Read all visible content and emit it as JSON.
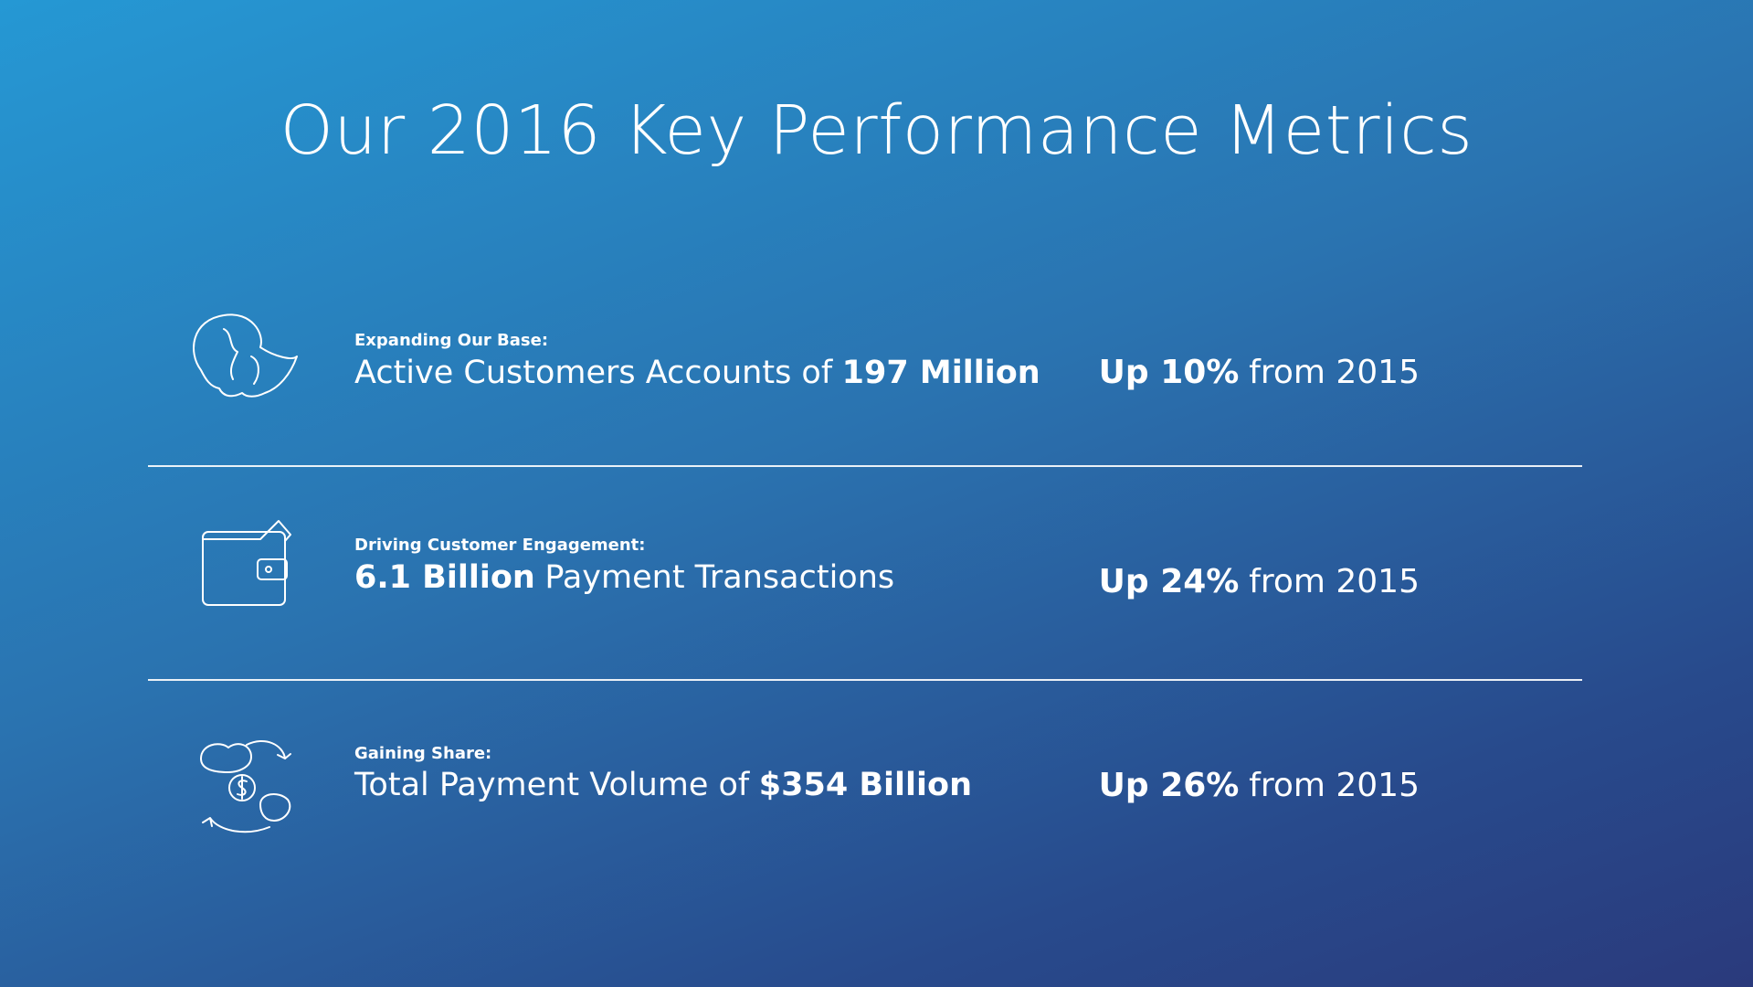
{
  "title": "Our 2016 Key Performance Metrics",
  "metrics": [
    {
      "label": "Expanding Our Base:",
      "description": [
        {
          "text": "Active Customers Accounts of",
          "bold": false
        },
        {
          "text": "197 Million",
          "bold": true
        }
      ],
      "change": [
        {
          "text": "Up 10%",
          "bold": true
        },
        {
          "text": "from 2015",
          "bold": false
        }
      ]
    },
    {
      "label": "Driving Customer Engagement:",
      "description": [
        {
          "text": "6.1 Billion",
          "bold": true
        },
        {
          "text": "Payment Transactions",
          "bold": false
        }
      ],
      "change": [
        {
          "text": "Up 24%",
          "bold": true
        },
        {
          "text": "from 2015",
          "bold": false
        }
      ]
    },
    {
      "label": "Gaining Share:",
      "description": [
        {
          "text": "Total Payment Volume of",
          "bold": false
        },
        {
          "text": "$354 Billion",
          "bold": true
        }
      ],
      "change": [
        {
          "text": "Up 26%",
          "bold": true
        },
        {
          "text": "from 2015",
          "bold": false
        }
      ]
    }
  ]
}
